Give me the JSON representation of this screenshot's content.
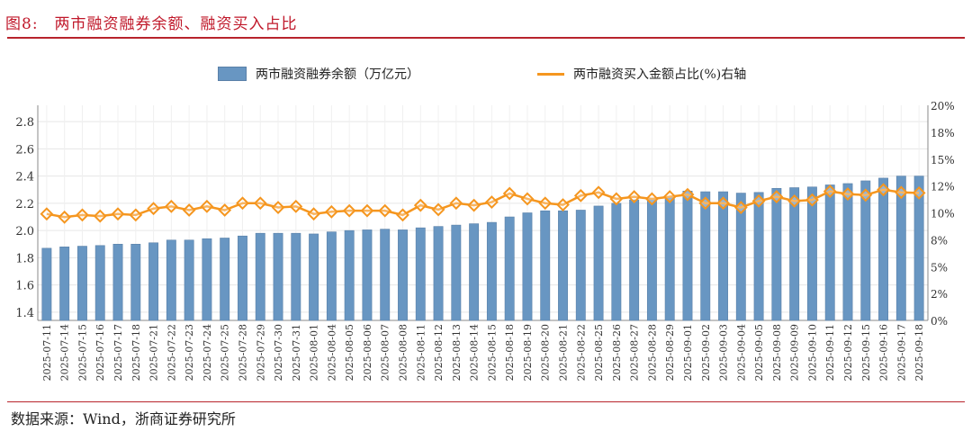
{
  "header": {
    "figure_no": "图8:",
    "title": "两市融资融券余额、融资买入占比"
  },
  "footer": {
    "source": "数据来源：Wind，浙商证券研究所"
  },
  "colors": {
    "bar": "#6896c2",
    "line": "#f5961f",
    "accent": "#b8242c",
    "grid": "#e6e6e6"
  },
  "chart_data": {
    "type": "bar+line",
    "title": "",
    "legend_position": "top",
    "grid": true,
    "categories": [
      "2025-07-11",
      "2025-07-14",
      "2025-07-15",
      "2025-07-16",
      "2025-07-17",
      "2025-07-18",
      "2025-07-21",
      "2025-07-22",
      "2025-07-23",
      "2025-07-24",
      "2025-07-25",
      "2025-07-28",
      "2025-07-29",
      "2025-07-30",
      "2025-07-31",
      "2025-08-01",
      "2025-08-04",
      "2025-08-05",
      "2025-08-06",
      "2025-08-07",
      "2025-08-08",
      "2025-08-11",
      "2025-08-12",
      "2025-08-13",
      "2025-08-14",
      "2025-08-15",
      "2025-08-18",
      "2025-08-19",
      "2025-08-20",
      "2025-08-21",
      "2025-08-22",
      "2025-08-25",
      "2025-08-26",
      "2025-08-27",
      "2025-08-28",
      "2025-08-29",
      "2025-09-01",
      "2025-09-02",
      "2025-09-03",
      "2025-09-04",
      "2025-09-05",
      "2025-09-08",
      "2025-09-09",
      "2025-09-10",
      "2025-09-11",
      "2025-09-12",
      "2025-09-15",
      "2025-09-16",
      "2025-09-17",
      "2025-09-18"
    ],
    "series": [
      {
        "name": "两市融资融券余额（万亿元）",
        "type": "bar",
        "axis": "left",
        "values": [
          1.87,
          1.88,
          1.885,
          1.89,
          1.9,
          1.9,
          1.91,
          1.93,
          1.93,
          1.94,
          1.945,
          1.96,
          1.98,
          1.98,
          1.98,
          1.975,
          1.99,
          2.0,
          2.005,
          2.01,
          2.005,
          2.02,
          2.03,
          2.04,
          2.05,
          2.06,
          2.1,
          2.13,
          2.145,
          2.145,
          2.15,
          2.18,
          2.2,
          2.225,
          2.23,
          2.245,
          2.29,
          2.285,
          2.285,
          2.275,
          2.28,
          2.31,
          2.315,
          2.32,
          2.335,
          2.345,
          2.365,
          2.385,
          2.4,
          2.4
        ]
      },
      {
        "name": "两市融资买入金额占比(%)右轴",
        "type": "line",
        "axis": "right",
        "marker": "diamond",
        "values": [
          9.9,
          9.6,
          9.8,
          9.7,
          9.9,
          9.8,
          10.4,
          10.6,
          10.25,
          10.6,
          10.25,
          10.9,
          10.9,
          10.5,
          10.6,
          9.9,
          10.1,
          10.2,
          10.2,
          10.2,
          9.8,
          10.7,
          10.3,
          10.9,
          10.7,
          11.0,
          11.8,
          11.3,
          10.9,
          10.75,
          11.6,
          11.9,
          11.3,
          11.5,
          11.3,
          11.5,
          11.7,
          10.9,
          10.9,
          10.5,
          11.1,
          11.5,
          11.1,
          11.2,
          12.0,
          11.75,
          11.65,
          12.15,
          11.9,
          11.85
        ]
      }
    ],
    "y_left": {
      "lim": [
        1.34,
        2.92
      ],
      "ticks": [
        1.4,
        1.6,
        1.8,
        2.0,
        2.2,
        2.4,
        2.6,
        2.8
      ],
      "tick_labels": [
        "1.4",
        "1.6",
        "1.8",
        "2.0",
        "2.2",
        "2.4",
        "2.6",
        "2.8"
      ]
    },
    "y_right": {
      "lim": [
        0,
        20
      ],
      "ticks": [
        0,
        2.5,
        5,
        7.5,
        10,
        12.5,
        15,
        17.5,
        20
      ],
      "tick_labels": [
        "0%",
        "2%",
        "5%",
        "8%",
        "10%",
        "12%",
        "15%",
        "18%",
        "20%"
      ]
    }
  }
}
